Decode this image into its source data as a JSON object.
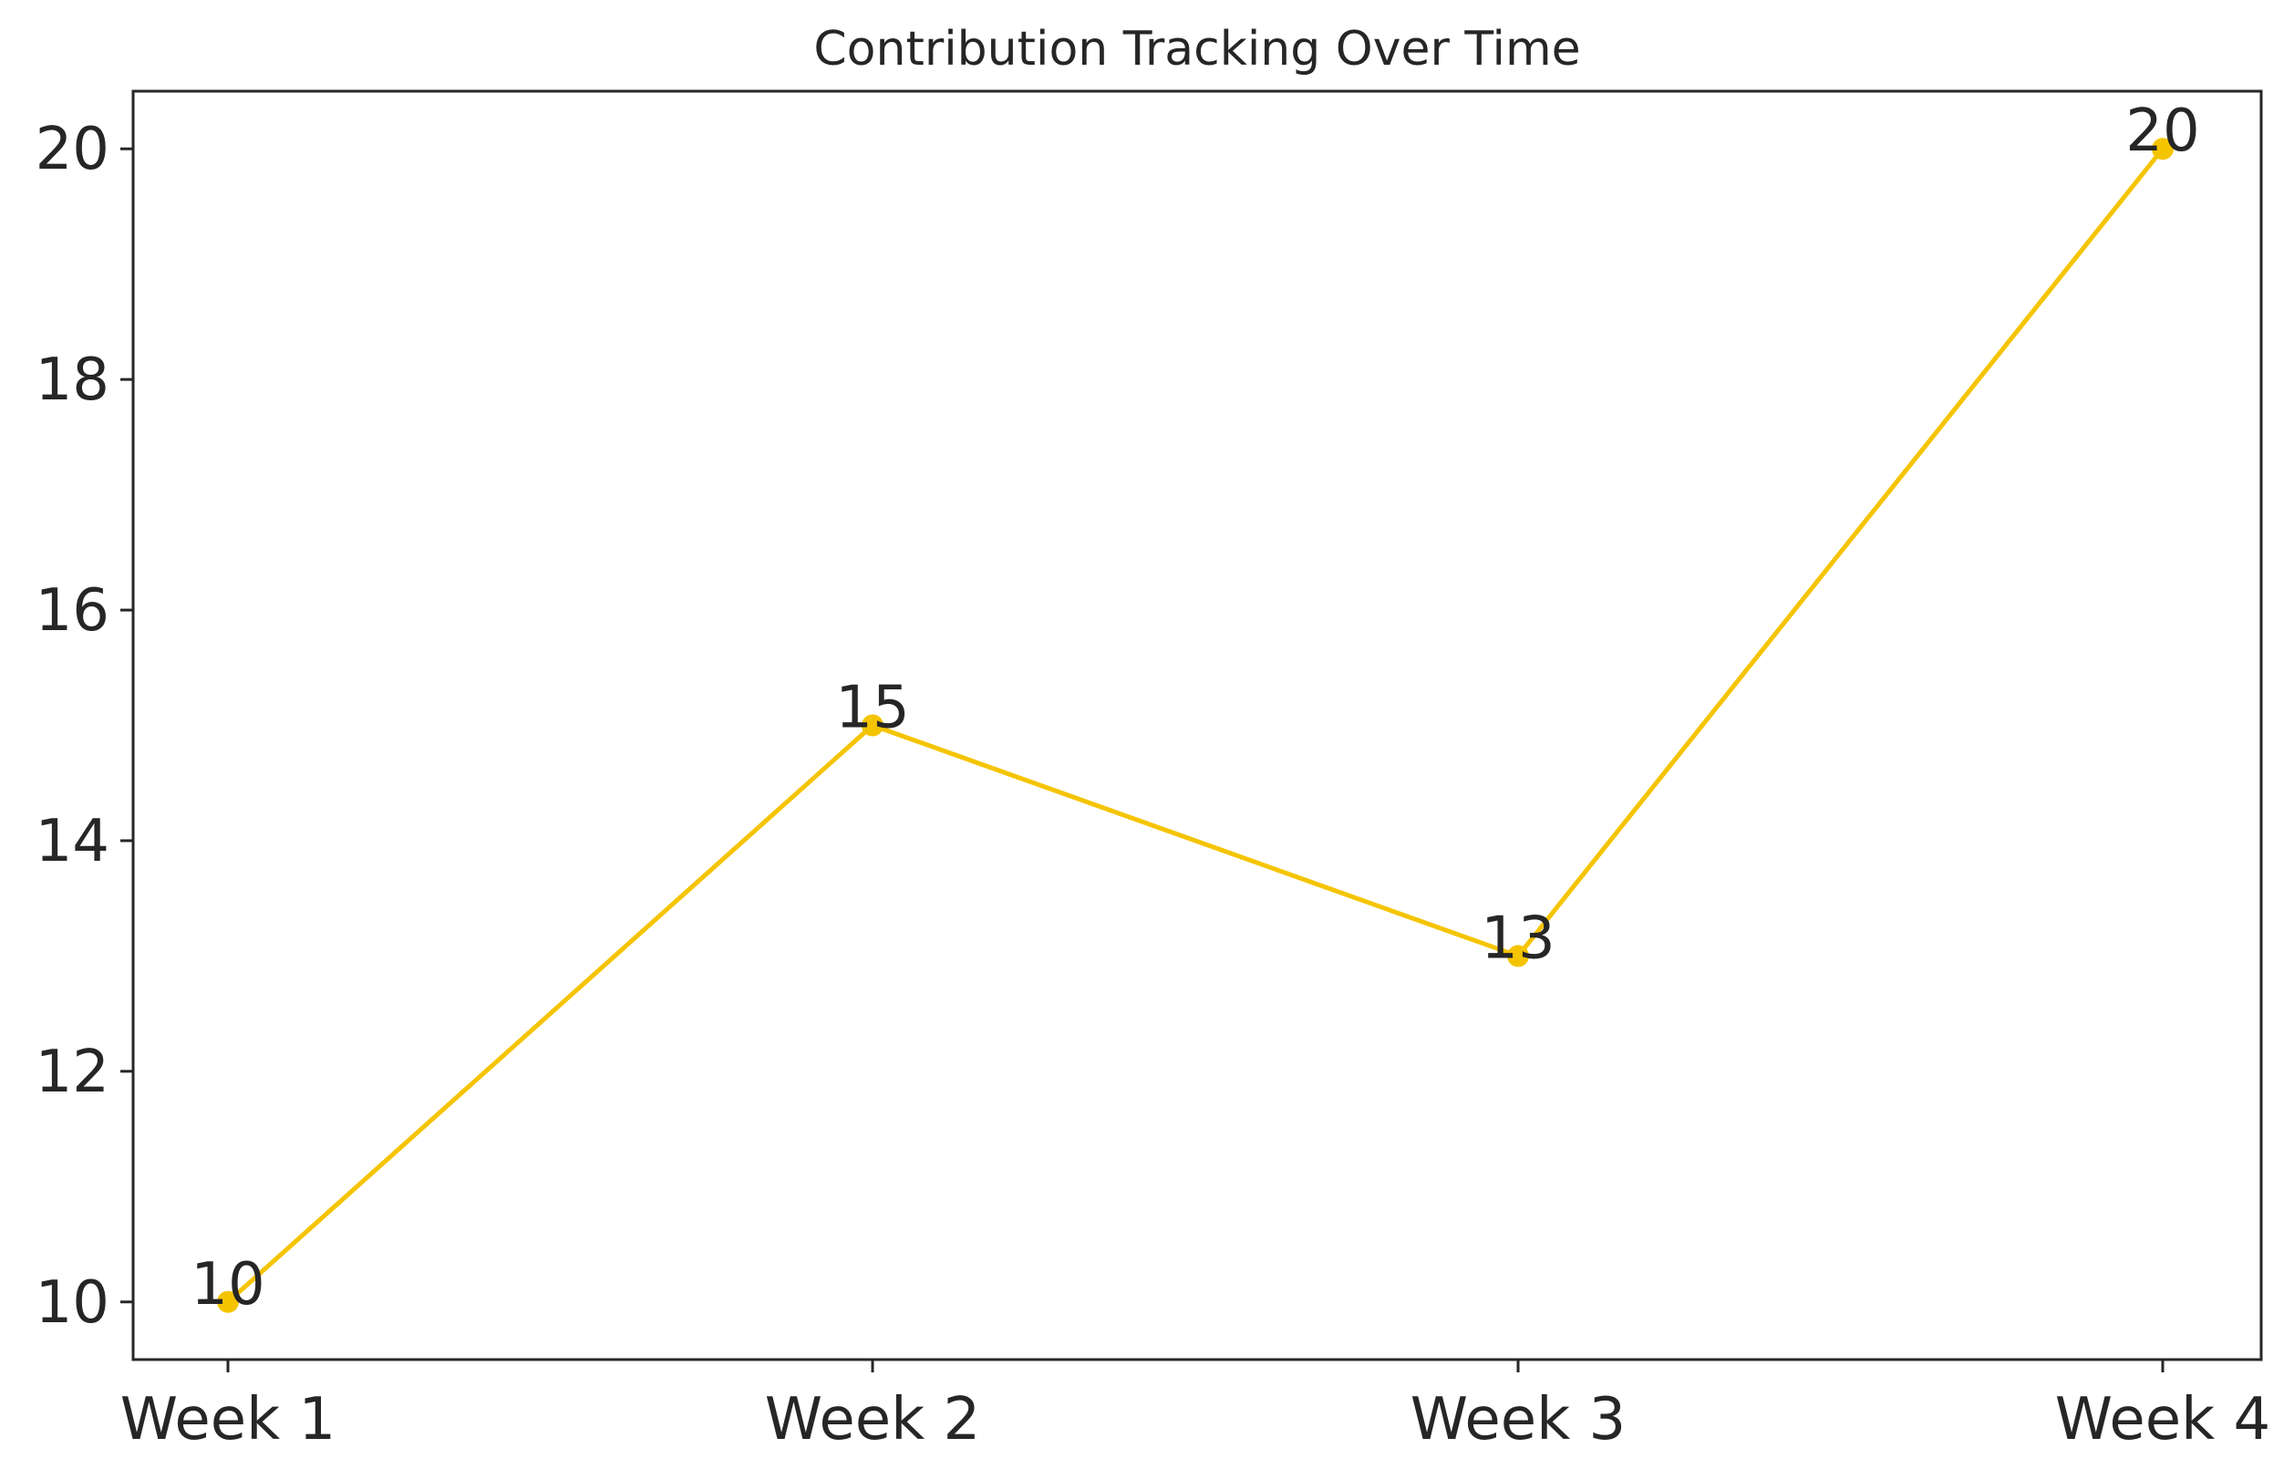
{
  "chart_data": {
    "type": "line",
    "title": "Contribution Tracking Over Time",
    "xlabel": "",
    "ylabel": "",
    "categories": [
      "Week 1",
      "Week 2",
      "Week 3",
      "Week 4"
    ],
    "series": [
      {
        "values": [
          10,
          15,
          13,
          20
        ],
        "color": "#f5c400"
      }
    ],
    "ylim": [
      9.5,
      20.5
    ],
    "yticks": [
      "10",
      "12",
      "14",
      "16",
      "18",
      "20"
    ],
    "data_labels": [
      "10",
      "15",
      "13",
      "20"
    ],
    "grid": false,
    "legend": "none"
  },
  "colors": {
    "line": "#f5c400",
    "axis": "#262626",
    "text": "#262626",
    "background": "#ffffff"
  }
}
